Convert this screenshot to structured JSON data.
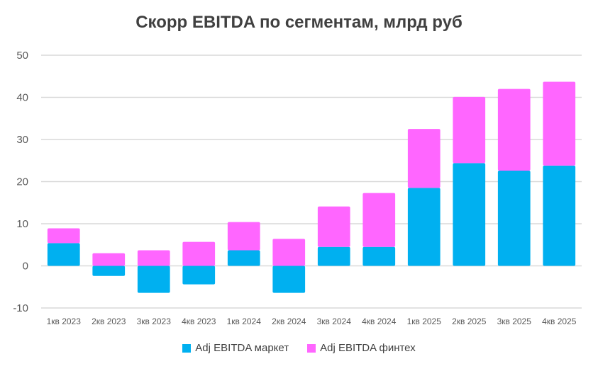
{
  "chart_data": {
    "type": "bar",
    "stacked": true,
    "title": "Скорр EBITDA по сегментам, млрд руб",
    "categories": [
      "1кв 2023",
      "2кв 2023",
      "3кв 2023",
      "4кв 2023",
      "1кв 2024",
      "2кв 2024",
      "3кв 2024",
      "4кв 2024",
      "1кв 2025",
      "2кв 2025",
      "3кв 2025",
      "4кв 2025"
    ],
    "series": [
      {
        "name": "Adj EBITDA маркет",
        "color": "#00B0F0",
        "values": [
          5.4,
          -2.4,
          -6.4,
          -4.4,
          3.7,
          -6.4,
          4.5,
          4.5,
          18.5,
          24.4,
          22.6,
          23.8
        ]
      },
      {
        "name": "Adj EBITDA финтех",
        "color": "#FF66FF",
        "values": [
          3.5,
          3.0,
          3.7,
          5.7,
          6.7,
          6.4,
          9.6,
          12.8,
          14.0,
          15.7,
          19.4,
          19.9
        ]
      }
    ],
    "ylim": [
      -10,
      50
    ],
    "yticks": [
      -10,
      0,
      10,
      20,
      30,
      40,
      50
    ],
    "grid": true,
    "legend": "bottom"
  }
}
